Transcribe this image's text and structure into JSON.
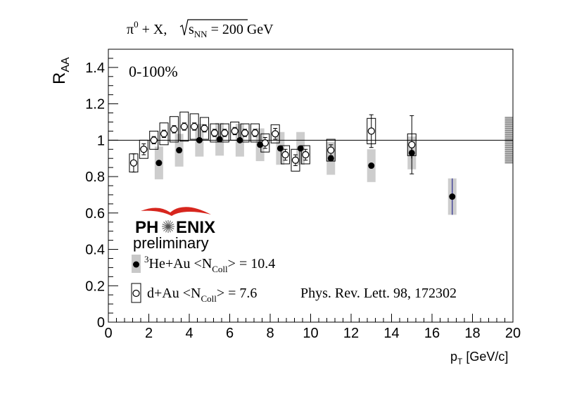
{
  "chart_data": {
    "type": "scatter",
    "title": "π⁰ + X, √s_NN = 200 GeV",
    "title_parts": {
      "particle": "π",
      "superscript": "0",
      "rest": " + X, ",
      "sqrt_symbol": "s",
      "sqrt_sub": "NN",
      "energy": " = 200 GeV"
    },
    "xlabel": "p_T [GeV/c]",
    "xlabel_parts": {
      "p": "p",
      "sub": "T",
      "unit": " [GeV/c]"
    },
    "ylabel": "R_AA",
    "ylabel_parts": {
      "r": "R",
      "sub": "AA"
    },
    "xlim": [
      0,
      20
    ],
    "ylim": [
      0,
      1.5
    ],
    "x_ticks": [
      0,
      2,
      4,
      6,
      8,
      10,
      12,
      14,
      16,
      18,
      20
    ],
    "y_ticks": [
      0,
      0.2,
      0.4,
      0.6,
      0.8,
      1,
      1.2,
      1.4
    ],
    "x_tick_labels": [
      "0",
      "2",
      "4",
      "6",
      "8",
      "10",
      "12",
      "14",
      "16",
      "18",
      "20"
    ],
    "y_tick_labels": [
      "0",
      "0.2",
      "0.4",
      "0.6",
      "0.8",
      "1",
      "1.2",
      "1.4"
    ],
    "grid": false,
    "reference_line": 1,
    "global_uncertainty": {
      "x": 19.6,
      "low": 0.87,
      "high": 1.13
    },
    "centrality": "0-100%",
    "logo": {
      "text": "PHENIX",
      "subtitle": "preliminary"
    },
    "citation": "Phys. Rev. Lett. 98, 172302",
    "legend_placement": "bottom-left",
    "series": [
      {
        "name": "³He+Au <N_Coll> = 10.4",
        "label_parts": {
          "sup": "3",
          "main": "He+Au <N",
          "sub": "Coll",
          "end": "> = 10.4"
        },
        "marker": "filled-circle",
        "sys_style": "gray-band",
        "points": [
          {
            "x": 2.5,
            "y": 0.875,
            "stat": 0.0,
            "sys": 0.09
          },
          {
            "x": 3.5,
            "y": 0.945,
            "stat": 0.0,
            "sys": 0.09
          },
          {
            "x": 4.5,
            "y": 1.0,
            "stat": 0.0,
            "sys": 0.09
          },
          {
            "x": 5.5,
            "y": 1.005,
            "stat": 0.0,
            "sys": 0.09
          },
          {
            "x": 6.5,
            "y": 1.0,
            "stat": 0.0,
            "sys": 0.09
          },
          {
            "x": 7.5,
            "y": 0.975,
            "stat": 0.0,
            "sys": 0.09
          },
          {
            "x": 8.5,
            "y": 0.955,
            "stat": 0.0,
            "sys": 0.09
          },
          {
            "x": 9.5,
            "y": 0.955,
            "stat": 0.0,
            "sys": 0.09
          },
          {
            "x": 11.0,
            "y": 0.9,
            "stat": 0.0,
            "sys": 0.09
          },
          {
            "x": 13.0,
            "y": 0.86,
            "stat": 0.015,
            "sys": 0.09
          },
          {
            "x": 15.0,
            "y": 0.93,
            "stat": 0.03,
            "sys": 0.09
          },
          {
            "x": 17.0,
            "y": 0.69,
            "stat": 0.1,
            "sys": 0.1
          }
        ]
      },
      {
        "name": "d+Au <N_Coll> = 7.6",
        "label_parts": {
          "main": "d+Au <N",
          "sub": "Coll",
          "end": "> = 7.6"
        },
        "marker": "open-circle",
        "sys_style": "open-box",
        "points": [
          {
            "x": 1.25,
            "y": 0.875,
            "stat": 0.05,
            "sys": 0.05
          },
          {
            "x": 1.75,
            "y": 0.95,
            "stat": 0.03,
            "sys": 0.05
          },
          {
            "x": 2.25,
            "y": 1.0,
            "stat": 0.02,
            "sys": 0.05
          },
          {
            "x": 2.75,
            "y": 1.035,
            "stat": 0.02,
            "sys": 0.06
          },
          {
            "x": 3.25,
            "y": 1.06,
            "stat": 0.02,
            "sys": 0.07
          },
          {
            "x": 3.75,
            "y": 1.075,
            "stat": 0.02,
            "sys": 0.08
          },
          {
            "x": 4.25,
            "y": 1.075,
            "stat": 0.02,
            "sys": 0.07
          },
          {
            "x": 4.75,
            "y": 1.065,
            "stat": 0.02,
            "sys": 0.06
          },
          {
            "x": 5.25,
            "y": 1.04,
            "stat": 0.02,
            "sys": 0.05
          },
          {
            "x": 5.75,
            "y": 1.04,
            "stat": 0.02,
            "sys": 0.05
          },
          {
            "x": 6.25,
            "y": 1.05,
            "stat": 0.02,
            "sys": 0.05
          },
          {
            "x": 6.75,
            "y": 1.04,
            "stat": 0.02,
            "sys": 0.05
          },
          {
            "x": 7.25,
            "y": 1.04,
            "stat": 0.02,
            "sys": 0.05
          },
          {
            "x": 7.75,
            "y": 0.985,
            "stat": 0.03,
            "sys": 0.05
          },
          {
            "x": 8.25,
            "y": 1.035,
            "stat": 0.03,
            "sys": 0.05
          },
          {
            "x": 8.75,
            "y": 0.92,
            "stat": 0.03,
            "sys": 0.05
          },
          {
            "x": 9.25,
            "y": 0.89,
            "stat": 0.03,
            "sys": 0.06
          },
          {
            "x": 9.75,
            "y": 0.92,
            "stat": 0.03,
            "sys": 0.05
          },
          {
            "x": 11.0,
            "y": 0.945,
            "stat": 0.03,
            "sys": 0.06
          },
          {
            "x": 13.0,
            "y": 1.05,
            "stat": 0.09,
            "sys": 0.07
          },
          {
            "x": 15.0,
            "y": 0.975,
            "stat": 0.16,
            "sys": 0.06
          }
        ]
      }
    ]
  }
}
